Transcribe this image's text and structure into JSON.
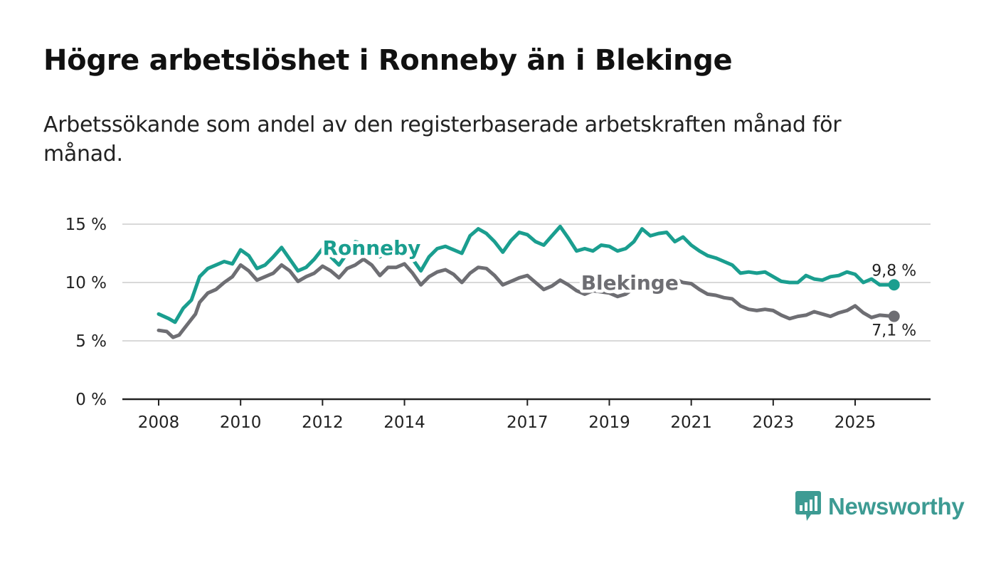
{
  "header": {
    "title": "Högre arbetslöshet i Ronneby än i Blekinge",
    "subtitle": "Arbetssökande som andel av den registerbaserade arbetskraften månad för månad."
  },
  "brand": {
    "name": "Newsworthy",
    "logo_icon": "newsworthy-logo-icon",
    "color": "#3d9b93"
  },
  "chart_data": {
    "type": "line",
    "title": "Högre arbetslöshet i Ronneby än i Blekinge",
    "subtitle": "Arbetssökande som andel av den registerbaserade arbetskraften månad för månad.",
    "xlabel": "",
    "ylabel": "",
    "xlim": [
      2008,
      2026.5
    ],
    "ylim": [
      0,
      15
    ],
    "grid": true,
    "legend": "inline labels",
    "y_ticks": [
      {
        "value": 0,
        "label": "0 %"
      },
      {
        "value": 5,
        "label": "5 %"
      },
      {
        "value": 10,
        "label": "10 %"
      },
      {
        "value": 15,
        "label": "15 %"
      }
    ],
    "x_ticks": [
      {
        "value": 2008,
        "label": "2008"
      },
      {
        "value": 2010,
        "label": "2010"
      },
      {
        "value": 2012,
        "label": "2012"
      },
      {
        "value": 2014,
        "label": "2014"
      },
      {
        "value": 2017,
        "label": "2017"
      },
      {
        "value": 2019,
        "label": "2019"
      },
      {
        "value": 2021,
        "label": "2021"
      },
      {
        "value": 2023,
        "label": "2023"
      },
      {
        "value": 2025,
        "label": "2025"
      }
    ],
    "series": [
      {
        "name": "Ronneby",
        "label": "Ronneby",
        "color": "#1a9e8f",
        "label_at": [
          2013.2,
          13.0
        ],
        "end_label": "9,8 %",
        "points": [
          [
            2008.0,
            7.3
          ],
          [
            2008.25,
            6.9
          ],
          [
            2008.4,
            6.6
          ],
          [
            2008.6,
            7.8
          ],
          [
            2008.8,
            8.5
          ],
          [
            2009.0,
            10.5
          ],
          [
            2009.2,
            11.2
          ],
          [
            2009.4,
            11.5
          ],
          [
            2009.6,
            11.8
          ],
          [
            2009.8,
            11.6
          ],
          [
            2010.0,
            12.8
          ],
          [
            2010.2,
            12.3
          ],
          [
            2010.4,
            11.2
          ],
          [
            2010.6,
            11.5
          ],
          [
            2010.8,
            12.2
          ],
          [
            2011.0,
            13.0
          ],
          [
            2011.2,
            12.0
          ],
          [
            2011.4,
            11.0
          ],
          [
            2011.6,
            11.3
          ],
          [
            2011.8,
            12.0
          ],
          [
            2012.0,
            12.9
          ],
          [
            2012.2,
            12.2
          ],
          [
            2012.4,
            11.5
          ],
          [
            2012.6,
            12.5
          ],
          [
            2012.8,
            13.5
          ],
          [
            2013.0,
            13.3
          ],
          [
            2013.2,
            13.0
          ],
          [
            2013.4,
            12.2
          ],
          [
            2013.6,
            12.8
          ],
          [
            2013.8,
            13.2
          ],
          [
            2014.0,
            12.8
          ],
          [
            2014.2,
            12.0
          ],
          [
            2014.4,
            11.0
          ],
          [
            2014.6,
            12.2
          ],
          [
            2014.8,
            12.9
          ],
          [
            2015.0,
            13.1
          ],
          [
            2015.2,
            12.8
          ],
          [
            2015.4,
            12.5
          ],
          [
            2015.6,
            14.0
          ],
          [
            2015.8,
            14.6
          ],
          [
            2016.0,
            14.2
          ],
          [
            2016.2,
            13.5
          ],
          [
            2016.4,
            12.6
          ],
          [
            2016.6,
            13.6
          ],
          [
            2016.8,
            14.3
          ],
          [
            2017.0,
            14.1
          ],
          [
            2017.2,
            13.5
          ],
          [
            2017.4,
            13.2
          ],
          [
            2017.6,
            14.0
          ],
          [
            2017.8,
            14.8
          ],
          [
            2018.0,
            13.8
          ],
          [
            2018.2,
            12.7
          ],
          [
            2018.4,
            12.9
          ],
          [
            2018.6,
            12.7
          ],
          [
            2018.8,
            13.2
          ],
          [
            2019.0,
            13.1
          ],
          [
            2019.2,
            12.7
          ],
          [
            2019.4,
            12.9
          ],
          [
            2019.6,
            13.5
          ],
          [
            2019.8,
            14.6
          ],
          [
            2020.0,
            14.0
          ],
          [
            2020.2,
            14.2
          ],
          [
            2020.4,
            14.3
          ],
          [
            2020.6,
            13.5
          ],
          [
            2020.8,
            13.9
          ],
          [
            2021.0,
            13.2
          ],
          [
            2021.2,
            12.7
          ],
          [
            2021.4,
            12.3
          ],
          [
            2021.6,
            12.1
          ],
          [
            2021.8,
            11.8
          ],
          [
            2022.0,
            11.5
          ],
          [
            2022.2,
            10.8
          ],
          [
            2022.4,
            10.9
          ],
          [
            2022.6,
            10.8
          ],
          [
            2022.8,
            10.9
          ],
          [
            2023.0,
            10.5
          ],
          [
            2023.2,
            10.1
          ],
          [
            2023.4,
            10.0
          ],
          [
            2023.6,
            10.0
          ],
          [
            2023.8,
            10.6
          ],
          [
            2024.0,
            10.3
          ],
          [
            2024.2,
            10.2
          ],
          [
            2024.4,
            10.5
          ],
          [
            2024.6,
            10.6
          ],
          [
            2024.8,
            10.9
          ],
          [
            2025.0,
            10.7
          ],
          [
            2025.2,
            10.0
          ],
          [
            2025.4,
            10.3
          ],
          [
            2025.6,
            9.8
          ],
          [
            2025.95,
            9.8
          ]
        ]
      },
      {
        "name": "Blekinge",
        "label": "Blekinge",
        "color": "#6e6e73",
        "label_at": [
          2019.5,
          10.0
        ],
        "end_label": "7,1 %",
        "points": [
          [
            2008.0,
            5.9
          ],
          [
            2008.2,
            5.8
          ],
          [
            2008.35,
            5.3
          ],
          [
            2008.5,
            5.5
          ],
          [
            2008.7,
            6.4
          ],
          [
            2008.9,
            7.3
          ],
          [
            2009.0,
            8.3
          ],
          [
            2009.2,
            9.1
          ],
          [
            2009.4,
            9.4
          ],
          [
            2009.6,
            10.0
          ],
          [
            2009.8,
            10.5
          ],
          [
            2010.0,
            11.5
          ],
          [
            2010.2,
            11.0
          ],
          [
            2010.4,
            10.2
          ],
          [
            2010.6,
            10.5
          ],
          [
            2010.8,
            10.8
          ],
          [
            2011.0,
            11.5
          ],
          [
            2011.2,
            11.0
          ],
          [
            2011.4,
            10.1
          ],
          [
            2011.6,
            10.5
          ],
          [
            2011.8,
            10.8
          ],
          [
            2012.0,
            11.4
          ],
          [
            2012.2,
            11.0
          ],
          [
            2012.4,
            10.4
          ],
          [
            2012.6,
            11.2
          ],
          [
            2012.8,
            11.5
          ],
          [
            2013.0,
            12.0
          ],
          [
            2013.2,
            11.5
          ],
          [
            2013.4,
            10.6
          ],
          [
            2013.6,
            11.3
          ],
          [
            2013.8,
            11.3
          ],
          [
            2014.0,
            11.6
          ],
          [
            2014.2,
            10.8
          ],
          [
            2014.4,
            9.8
          ],
          [
            2014.6,
            10.5
          ],
          [
            2014.8,
            10.9
          ],
          [
            2015.0,
            11.1
          ],
          [
            2015.2,
            10.7
          ],
          [
            2015.4,
            10.0
          ],
          [
            2015.6,
            10.8
          ],
          [
            2015.8,
            11.3
          ],
          [
            2016.0,
            11.2
          ],
          [
            2016.2,
            10.6
          ],
          [
            2016.4,
            9.8
          ],
          [
            2016.6,
            10.1
          ],
          [
            2016.8,
            10.4
          ],
          [
            2017.0,
            10.6
          ],
          [
            2017.2,
            10.0
          ],
          [
            2017.4,
            9.4
          ],
          [
            2017.6,
            9.7
          ],
          [
            2017.8,
            10.2
          ],
          [
            2018.0,
            9.8
          ],
          [
            2018.2,
            9.3
          ],
          [
            2018.4,
            9.0
          ],
          [
            2018.6,
            9.3
          ],
          [
            2018.8,
            9.2
          ],
          [
            2019.0,
            9.1
          ],
          [
            2019.2,
            8.8
          ],
          [
            2019.4,
            9.0
          ],
          [
            2019.6,
            9.5
          ],
          [
            2019.8,
            10.0
          ],
          [
            2020.0,
            10.2
          ],
          [
            2020.2,
            10.1
          ],
          [
            2020.4,
            10.3
          ],
          [
            2020.6,
            10.3
          ],
          [
            2020.8,
            10.0
          ],
          [
            2021.0,
            9.9
          ],
          [
            2021.2,
            9.4
          ],
          [
            2021.4,
            9.0
          ],
          [
            2021.6,
            8.9
          ],
          [
            2021.8,
            8.7
          ],
          [
            2022.0,
            8.6
          ],
          [
            2022.2,
            8.0
          ],
          [
            2022.4,
            7.7
          ],
          [
            2022.6,
            7.6
          ],
          [
            2022.8,
            7.7
          ],
          [
            2023.0,
            7.6
          ],
          [
            2023.2,
            7.2
          ],
          [
            2023.4,
            6.9
          ],
          [
            2023.6,
            7.1
          ],
          [
            2023.8,
            7.2
          ],
          [
            2024.0,
            7.5
          ],
          [
            2024.2,
            7.3
          ],
          [
            2024.4,
            7.1
          ],
          [
            2024.6,
            7.4
          ],
          [
            2024.8,
            7.6
          ],
          [
            2025.0,
            8.0
          ],
          [
            2025.2,
            7.4
          ],
          [
            2025.4,
            7.0
          ],
          [
            2025.6,
            7.2
          ],
          [
            2025.95,
            7.1
          ]
        ]
      }
    ]
  }
}
